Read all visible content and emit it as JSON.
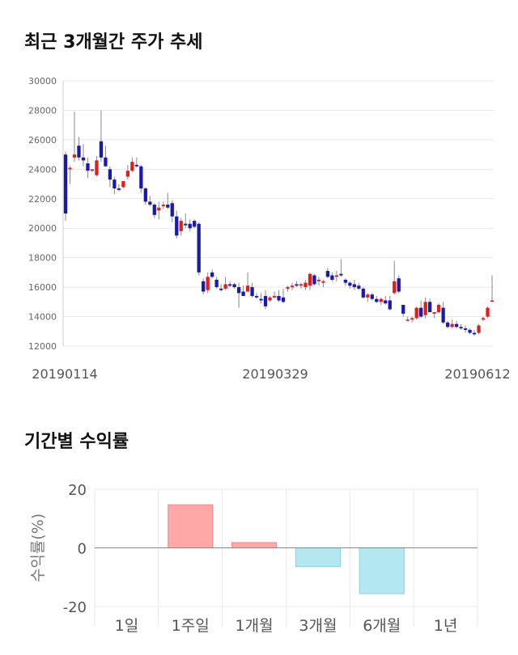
{
  "price_section": {
    "title": "최근 3개월간 주가 추세"
  },
  "return_section": {
    "title": "기간별 수익률"
  },
  "colors": {
    "up": "#e01e1e",
    "down": "#1a1aaa",
    "wick": "#888888",
    "positive_bar": "#ffa8a8",
    "negative_bar": "#b4e8f0",
    "grid": "#e8e8e8"
  },
  "chart_data": [
    {
      "type": "candlestick",
      "title": "",
      "xlabel": "",
      "ylabel": "",
      "ylim": [
        12000,
        30000
      ],
      "yticks": [
        12000,
        14000,
        16000,
        18000,
        20000,
        22000,
        24000,
        26000,
        28000,
        30000
      ],
      "x_tick_labels": [
        "20190114",
        "20190329",
        "20190612"
      ],
      "grid": true,
      "ohlc": [
        [
          25000,
          25200,
          20500,
          21000
        ],
        [
          24000,
          24200,
          23000,
          24100
        ],
        [
          24800,
          27900,
          24500,
          25000
        ],
        [
          25600,
          26200,
          24600,
          24800
        ],
        [
          24800,
          25700,
          24200,
          24600
        ],
        [
          24400,
          24800,
          23400,
          23900
        ],
        [
          23900,
          24000,
          23800,
          24000
        ],
        [
          23600,
          24900,
          23500,
          24600
        ],
        [
          25900,
          28000,
          24500,
          24800
        ],
        [
          24800,
          25600,
          24200,
          24200
        ],
        [
          24000,
          24200,
          22800,
          23300
        ],
        [
          23300,
          23500,
          22300,
          22700
        ],
        [
          22700,
          23000,
          22500,
          22600
        ],
        [
          22800,
          23200,
          22700,
          23200
        ],
        [
          23500,
          24300,
          23300,
          23900
        ],
        [
          23900,
          24800,
          23800,
          24500
        ],
        [
          24300,
          24800,
          24100,
          24200
        ],
        [
          24200,
          24300,
          22400,
          22700
        ],
        [
          22700,
          22800,
          21600,
          21800
        ],
        [
          21800,
          22200,
          21500,
          21600
        ],
        [
          21600,
          21700,
          20700,
          20900
        ],
        [
          21200,
          21800,
          20600,
          21400
        ],
        [
          21500,
          21800,
          21300,
          21600
        ],
        [
          21600,
          22400,
          21300,
          21400
        ],
        [
          21700,
          21900,
          20400,
          20800
        ],
        [
          20800,
          21200,
          19300,
          19500
        ],
        [
          19800,
          20700,
          19500,
          20500
        ],
        [
          20300,
          21000,
          20000,
          20200
        ],
        [
          20300,
          20600,
          19800,
          20000
        ],
        [
          20500,
          20600,
          20000,
          20100
        ],
        [
          20300,
          20400,
          16800,
          17000
        ],
        [
          16400,
          16600,
          15500,
          15700
        ],
        [
          15800,
          17000,
          15600,
          16700
        ],
        [
          17000,
          17200,
          16600,
          16700
        ],
        [
          16500,
          16700,
          15900,
          16000
        ],
        [
          15900,
          16200,
          15700,
          15800
        ],
        [
          15900,
          16700,
          15800,
          16200
        ],
        [
          16200,
          16400,
          16000,
          16100
        ],
        [
          16200,
          16300,
          15900,
          16000
        ],
        [
          16000,
          16300,
          14600,
          15600
        ],
        [
          15700,
          16100,
          15400,
          15400
        ],
        [
          15700,
          17000,
          15700,
          16100
        ],
        [
          16000,
          16300,
          15300,
          15400
        ],
        [
          15400,
          15600,
          15200,
          15300
        ],
        [
          15200,
          15600,
          14900,
          15100
        ],
        [
          15400,
          15800,
          14500,
          14700
        ],
        [
          15100,
          15400,
          15000,
          15300
        ],
        [
          15300,
          15700,
          15200,
          15400
        ],
        [
          15400,
          15800,
          15000,
          15100
        ],
        [
          15300,
          15900,
          14900,
          15000
        ],
        [
          15900,
          16100,
          15700,
          16000
        ],
        [
          16000,
          16300,
          15800,
          16100
        ],
        [
          16200,
          16400,
          16000,
          16100
        ],
        [
          16100,
          16300,
          15900,
          16200
        ],
        [
          16000,
          16500,
          15800,
          16300
        ],
        [
          16100,
          17000,
          15800,
          16900
        ],
        [
          16800,
          16900,
          16100,
          16200
        ],
        [
          16400,
          16700,
          16100,
          16500
        ],
        [
          16300,
          16500,
          16000,
          16400
        ],
        [
          17100,
          17300,
          16600,
          16700
        ],
        [
          16800,
          17000,
          16400,
          16500
        ],
        [
          16700,
          17100,
          16400,
          16800
        ],
        [
          16900,
          17900,
          16700,
          16800
        ],
        [
          16500,
          16600,
          16100,
          16300
        ],
        [
          16300,
          16400,
          15900,
          16100
        ],
        [
          16200,
          16500,
          15800,
          16000
        ],
        [
          16100,
          16300,
          15800,
          15900
        ],
        [
          15900,
          16000,
          15200,
          15300
        ],
        [
          15300,
          15600,
          15000,
          15500
        ],
        [
          15500,
          15600,
          15100,
          15200
        ],
        [
          15200,
          15400,
          14900,
          15000
        ],
        [
          15000,
          15300,
          14800,
          15200
        ],
        [
          15100,
          15400,
          14800,
          14900
        ],
        [
          15100,
          15400,
          14400,
          14500
        ],
        [
          15600,
          17800,
          15500,
          16400
        ],
        [
          16600,
          16800,
          15600,
          15700
        ],
        [
          14800,
          14800,
          14000,
          14200
        ],
        [
          13800,
          14000,
          13700,
          13800
        ],
        [
          13800,
          14000,
          13600,
          13900
        ],
        [
          13900,
          14700,
          13800,
          14600
        ],
        [
          14600,
          15100,
          13900,
          14000
        ],
        [
          14100,
          15300,
          13900,
          15000
        ],
        [
          15000,
          15200,
          14400,
          14300
        ],
        [
          14200,
          14300,
          13900,
          14300
        ],
        [
          14300,
          14900,
          14200,
          14800
        ],
        [
          14600,
          15000,
          13500,
          13600
        ],
        [
          13600,
          13700,
          13200,
          13300
        ],
        [
          13300,
          13800,
          13200,
          13500
        ],
        [
          13500,
          13700,
          13200,
          13300
        ],
        [
          13300,
          13500,
          13100,
          13200
        ],
        [
          13200,
          13400,
          12900,
          13100
        ],
        [
          13100,
          13200,
          12800,
          12900
        ],
        [
          12900,
          13100,
          12700,
          12800
        ],
        [
          12900,
          13500,
          12800,
          13400
        ],
        [
          13800,
          14000,
          13700,
          13900
        ],
        [
          14000,
          14700,
          13900,
          14600
        ],
        [
          15100,
          16800,
          15000,
          15100
        ]
      ]
    },
    {
      "type": "bar",
      "title": "",
      "xlabel": "",
      "ylabel": "수익률(%)",
      "ylim": [
        -20,
        20
      ],
      "yticks": [
        "20",
        "0",
        "-20"
      ],
      "categories": [
        "1일",
        "1주일",
        "1개월",
        "3개월",
        "6개월",
        "1년"
      ],
      "values": [
        0,
        14.7,
        1.8,
        -6.4,
        -15.6,
        0
      ],
      "grid": true
    }
  ]
}
